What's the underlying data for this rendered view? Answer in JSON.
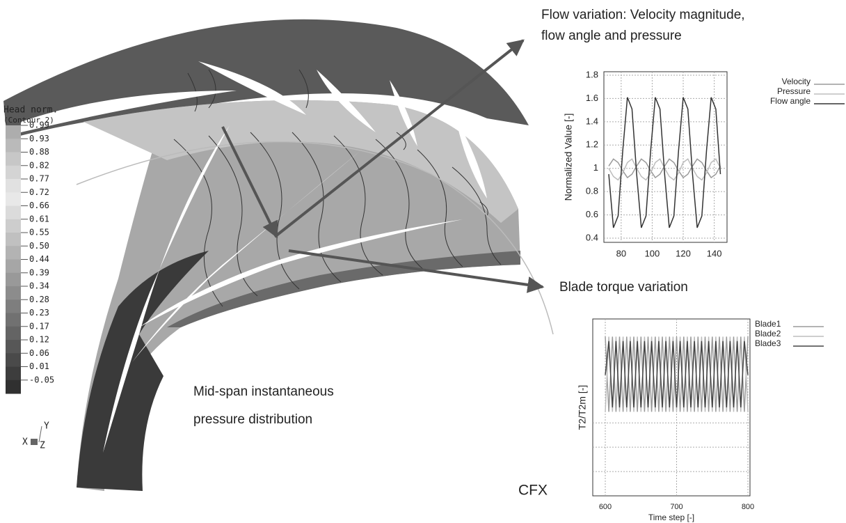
{
  "colorbar": {
    "title": "Head norm.",
    "subtitle": "(Contour 2)",
    "labels": [
      "0.99",
      "0.93",
      "0.88",
      "0.82",
      "0.77",
      "0.72",
      "0.66",
      "0.61",
      "0.55",
      "0.50",
      "0.44",
      "0.39",
      "0.34",
      "0.28",
      "0.23",
      "0.17",
      "0.12",
      "0.06",
      "0.01",
      "-0.05"
    ]
  },
  "axes_triad": {
    "y": "Y",
    "x": "X",
    "z": "Z"
  },
  "annotations": {
    "flow_variation": [
      "Flow variation: Velocity magnitude,",
      "flow angle and pressure"
    ],
    "blade_torque": "Blade torque variation",
    "mid_span": [
      "Mid-span instantaneous",
      "pressure distribution"
    ],
    "software": "CFX"
  },
  "chart_data": [
    {
      "type": "line",
      "y_label": "Normalized Value [-]",
      "x": [
        72,
        75,
        78,
        81,
        84,
        87,
        90,
        93,
        96,
        99,
        102,
        105,
        108,
        111,
        114,
        117,
        120,
        123,
        126,
        129,
        132,
        135,
        138,
        141,
        144
      ],
      "xlim": [
        72,
        146
      ],
      "xticks": [
        80,
        100,
        120,
        140
      ],
      "ylim": [
        0.4,
        1.8
      ],
      "yticks": [
        0.4,
        0.6,
        0.8,
        1,
        1.2,
        1.4,
        1.6,
        1.8
      ],
      "grid": true,
      "series": [
        {
          "name": "Velocity",
          "color": "#9a9a9a",
          "values": [
            1.02,
            1.08,
            1.05,
            0.98,
            0.92,
            0.95,
            1.02,
            1.08,
            1.05,
            0.98,
            0.92,
            0.95,
            1.02,
            1.08,
            1.05,
            0.98,
            0.92,
            0.95,
            1.02,
            1.08,
            1.05,
            0.98,
            0.92,
            0.95,
            1.02
          ]
        },
        {
          "name": "Pressure",
          "color": "#bdbdbd",
          "values": [
            1.0,
            0.93,
            0.9,
            0.96,
            1.05,
            1.08,
            1.0,
            0.93,
            0.9,
            0.96,
            1.05,
            1.08,
            1.0,
            0.93,
            0.9,
            0.96,
            1.05,
            1.08,
            1.0,
            0.93,
            0.9,
            0.96,
            1.05,
            1.08,
            1.0
          ]
        },
        {
          "name": "Flow angle",
          "color": "#333333",
          "values": [
            0.95,
            0.49,
            0.59,
            1.15,
            1.61,
            1.51,
            0.95,
            0.49,
            0.59,
            1.15,
            1.61,
            1.51,
            0.95,
            0.49,
            0.59,
            1.15,
            1.61,
            1.51,
            0.95,
            0.49,
            0.59,
            1.15,
            1.61,
            1.51,
            0.95
          ]
        }
      ]
    },
    {
      "type": "line",
      "x_label": "Time step [-]",
      "y_label": "T2/T2m [-]",
      "x": [
        600,
        605,
        610,
        615,
        620,
        625,
        630,
        635,
        640,
        645,
        650,
        655,
        660,
        665,
        670,
        675,
        680,
        685,
        690,
        695,
        700,
        705,
        710,
        715,
        720,
        725,
        730,
        735,
        740,
        745,
        750,
        755,
        760,
        765,
        770,
        775,
        780,
        785,
        790,
        795,
        800
      ],
      "xlim": [
        600,
        800
      ],
      "xticks": [
        600,
        700,
        800
      ],
      "ylim": [
        0,
        1.2
      ],
      "grid": true,
      "series": [
        {
          "name": "Blade1",
          "color": "#9a9a9a",
          "values": [
            1.08,
            0.57,
            1.08,
            0.57,
            1.08,
            0.57,
            1.08,
            0.57,
            1.08,
            0.57,
            1.08,
            0.57,
            1.08,
            0.57,
            1.08,
            0.57,
            1.08,
            0.57,
            1.08,
            0.57,
            1.08,
            0.57,
            1.08,
            0.57,
            1.08,
            0.57,
            1.08,
            0.57,
            1.08,
            0.57,
            1.08,
            0.57,
            1.08,
            0.57,
            1.08,
            0.57,
            1.08,
            0.57,
            1.08,
            0.57,
            1.08
          ]
        },
        {
          "name": "Blade2",
          "color": "#bdbdbd",
          "values": [
            0.57,
            1.08,
            0.57,
            1.08,
            0.57,
            1.08,
            0.57,
            1.08,
            0.57,
            1.08,
            0.57,
            1.08,
            0.57,
            1.08,
            0.57,
            1.08,
            0.57,
            1.08,
            0.57,
            1.08,
            0.57,
            1.08,
            0.57,
            1.08,
            0.57,
            1.08,
            0.57,
            1.08,
            0.57,
            1.08,
            0.57,
            1.08,
            0.57,
            1.08,
            0.57,
            1.08,
            0.57,
            1.08,
            0.57,
            1.08,
            0.57
          ]
        },
        {
          "name": "Blade3",
          "color": "#444444",
          "values": [
            0.82,
            1.05,
            0.6,
            1.05,
            0.6,
            1.05,
            0.6,
            1.05,
            0.6,
            1.05,
            0.6,
            1.05,
            0.6,
            1.05,
            0.6,
            1.05,
            0.6,
            1.05,
            0.6,
            1.05,
            0.6,
            1.05,
            0.6,
            1.05,
            0.6,
            1.05,
            0.6,
            1.05,
            0.6,
            1.05,
            0.6,
            1.05,
            0.6,
            1.05,
            0.6,
            1.05,
            0.6,
            1.05,
            0.6,
            1.05,
            0.82
          ]
        }
      ]
    }
  ]
}
